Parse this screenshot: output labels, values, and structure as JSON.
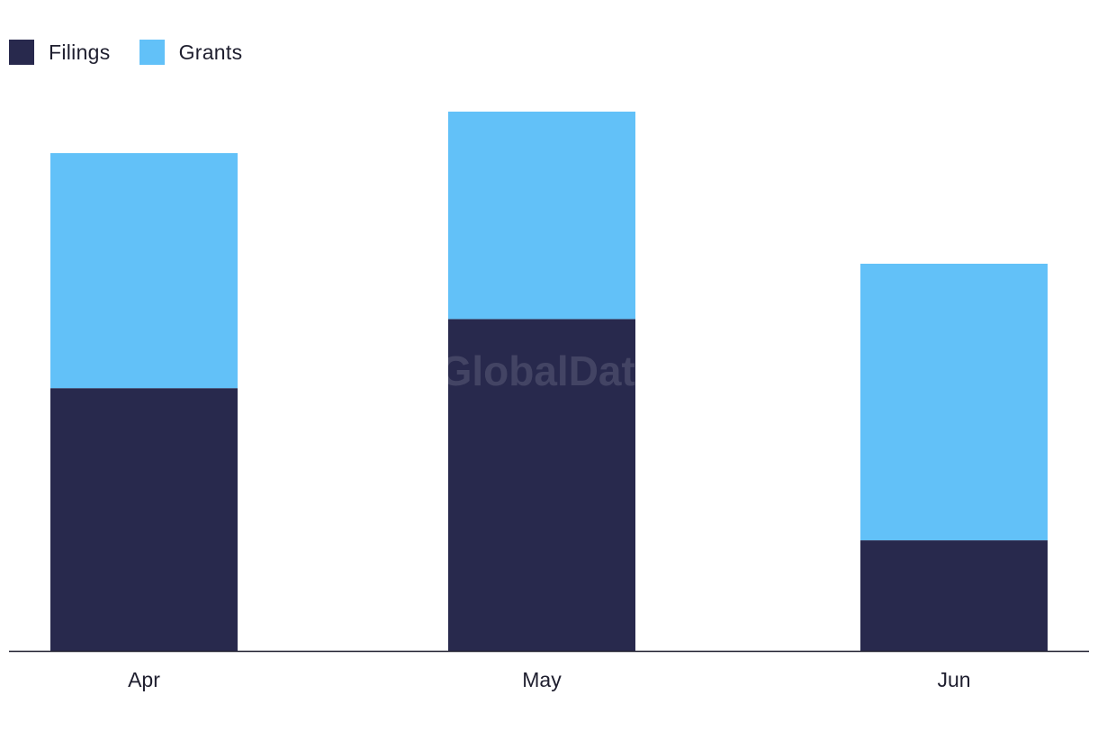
{
  "chart_data": {
    "type": "bar",
    "stacked": true,
    "categories": [
      "Apr",
      "May",
      "Jun"
    ],
    "series": [
      {
        "name": "Filings",
        "color": "#28294d",
        "values": [
          38,
          48,
          16
        ]
      },
      {
        "name": "Grants",
        "color": "#62c1f8",
        "values": [
          34,
          30,
          40
        ]
      }
    ],
    "ylim": [
      0,
      78
    ],
    "legend_position": "top-left",
    "grid": false,
    "watermark": "GlobalData"
  }
}
